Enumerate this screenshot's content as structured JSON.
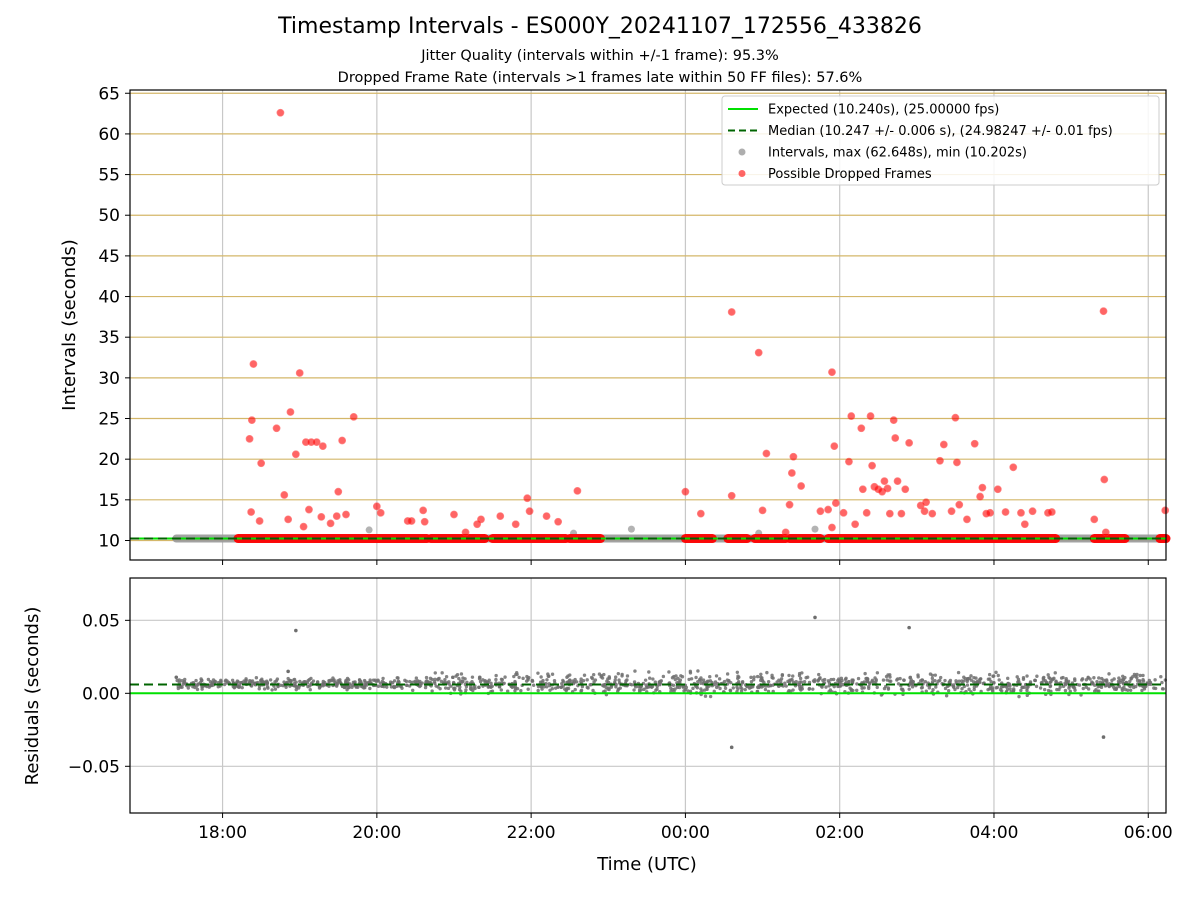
{
  "title": "Timestamp Intervals - ES000Y_20241107_172556_433826",
  "subtitle_lines": [
    "Jitter Quality (intervals within +/-1 frame): 95.3%",
    "Dropped Frame Rate (intervals >1 frames late within 50 FF files): 57.6%"
  ],
  "colors": {
    "expected": "#00e000",
    "median": "#006400",
    "intervals": "#9a9a9a",
    "dropped": "#ff0000",
    "residuals": "#6e6e6e",
    "hgrid_top": "#d4b76a",
    "vgrid": "#c8c8c8"
  },
  "chart_data": [
    {
      "type": "scatter",
      "panel": "top",
      "xlabel": "",
      "ylabel": "Intervals (seconds)",
      "x_unit": "hours since 00:00 UTC (negative = previous day)",
      "xlim": [
        -7.2,
        6.23
      ],
      "ylim": [
        7.6,
        65.4
      ],
      "yticks": [
        10,
        15,
        20,
        25,
        30,
        35,
        40,
        45,
        50,
        55,
        60,
        65
      ],
      "xticks": [
        -6,
        -4,
        -2,
        0,
        2,
        4,
        6
      ],
      "xtick_labels": [
        "18:00",
        "20:00",
        "22:00",
        "00:00",
        "02:00",
        "04:00",
        "06:00"
      ],
      "grid": {
        "horizontal": true,
        "vertical": true
      },
      "legend_position": "upper-right",
      "legend": [
        {
          "label": "Expected (10.240s), (25.00000 fps)",
          "kind": "line-solid"
        },
        {
          "label": "Median (10.247 +/- 0.006 s), (24.98247 +/- 0.01 fps)",
          "kind": "line-dashed"
        },
        {
          "label": "Intervals, max (62.648s), min (10.202s)",
          "kind": "dot-gray"
        },
        {
          "label": "Possible Dropped Frames",
          "kind": "dot-red"
        }
      ],
      "expected_value": 10.24,
      "median_value": 10.247,
      "intervals_band": {
        "start": -6.6,
        "end": 6.23,
        "value": 10.24
      },
      "dropped_band_segments": [
        [
          -5.8,
          -3.35
        ],
        [
          -3.3,
          -2.6
        ],
        [
          -2.5,
          -1.55
        ],
        [
          -1.5,
          -1.1
        ],
        [
          0.0,
          0.35
        ],
        [
          0.55,
          0.8
        ],
        [
          0.9,
          1.3
        ],
        [
          1.35,
          1.75
        ],
        [
          1.85,
          4.8
        ],
        [
          5.3,
          5.7
        ],
        [
          6.15,
          6.23
        ]
      ],
      "isolated_intervals": [
        {
          "x": -1.45,
          "y": 10.9
        },
        {
          "x": -0.7,
          "y": 11.4
        },
        {
          "x": 0.95,
          "y": 10.9
        },
        {
          "x": 1.68,
          "y": 11.4
        },
        {
          "x": -4.1,
          "y": 11.3
        }
      ],
      "dropped_points": [
        {
          "x": -5.6,
          "y": 31.7
        },
        {
          "x": -5.65,
          "y": 22.5
        },
        {
          "x": -5.62,
          "y": 24.8
        },
        {
          "x": -5.5,
          "y": 19.5
        },
        {
          "x": -5.3,
          "y": 23.8
        },
        {
          "x": -5.2,
          "y": 15.6
        },
        {
          "x": -5.25,
          "y": 62.6
        },
        {
          "x": -5.05,
          "y": 20.6
        },
        {
          "x": -5.0,
          "y": 30.6
        },
        {
          "x": -4.92,
          "y": 22.1
        },
        {
          "x": -4.85,
          "y": 22.1
        },
        {
          "x": -4.78,
          "y": 22.1
        },
        {
          "x": -4.7,
          "y": 21.6
        },
        {
          "x": -5.12,
          "y": 25.8
        },
        {
          "x": -4.5,
          "y": 16.0
        },
        {
          "x": -4.45,
          "y": 22.3
        },
        {
          "x": -4.3,
          "y": 25.2
        },
        {
          "x": -5.63,
          "y": 13.5
        },
        {
          "x": -5.52,
          "y": 12.4
        },
        {
          "x": -5.15,
          "y": 12.6
        },
        {
          "x": -4.95,
          "y": 11.7
        },
        {
          "x": -4.88,
          "y": 13.8
        },
        {
          "x": -4.72,
          "y": 12.9
        },
        {
          "x": -4.6,
          "y": 12.1
        },
        {
          "x": -4.52,
          "y": 13.0
        },
        {
          "x": -4.4,
          "y": 13.2
        },
        {
          "x": -4.0,
          "y": 14.2
        },
        {
          "x": -3.95,
          "y": 13.4
        },
        {
          "x": -3.6,
          "y": 12.4
        },
        {
          "x": -3.55,
          "y": 12.4
        },
        {
          "x": -3.4,
          "y": 13.7
        },
        {
          "x": -3.38,
          "y": 12.3
        },
        {
          "x": -3.0,
          "y": 13.2
        },
        {
          "x": -2.85,
          "y": 11.0
        },
        {
          "x": -2.7,
          "y": 12.0
        },
        {
          "x": -2.65,
          "y": 12.6
        },
        {
          "x": -2.4,
          "y": 13.0
        },
        {
          "x": -2.2,
          "y": 12.0
        },
        {
          "x": -2.05,
          "y": 15.2
        },
        {
          "x": -2.02,
          "y": 13.6
        },
        {
          "x": -1.8,
          "y": 13.0
        },
        {
          "x": -1.65,
          "y": 12.3
        },
        {
          "x": -1.4,
          "y": 16.1
        },
        {
          "x": 0.0,
          "y": 16.0
        },
        {
          "x": 0.2,
          "y": 13.3
        },
        {
          "x": 0.6,
          "y": 38.1
        },
        {
          "x": 0.6,
          "y": 15.5
        },
        {
          "x": 0.95,
          "y": 33.1
        },
        {
          "x": 1.05,
          "y": 20.7
        },
        {
          "x": 1.0,
          "y": 13.7
        },
        {
          "x": 1.3,
          "y": 11.0
        },
        {
          "x": 1.35,
          "y": 14.4
        },
        {
          "x": 1.38,
          "y": 18.3
        },
        {
          "x": 1.4,
          "y": 20.3
        },
        {
          "x": 1.5,
          "y": 16.7
        },
        {
          "x": 1.75,
          "y": 13.6
        },
        {
          "x": 1.85,
          "y": 13.8
        },
        {
          "x": 1.9,
          "y": 30.7
        },
        {
          "x": 1.93,
          "y": 21.6
        },
        {
          "x": 1.95,
          "y": 14.6
        },
        {
          "x": 1.9,
          "y": 11.6
        },
        {
          "x": 2.05,
          "y": 13.4
        },
        {
          "x": 2.15,
          "y": 25.3
        },
        {
          "x": 2.12,
          "y": 19.7
        },
        {
          "x": 2.2,
          "y": 12.0
        },
        {
          "x": 2.28,
          "y": 23.8
        },
        {
          "x": 2.3,
          "y": 16.3
        },
        {
          "x": 2.35,
          "y": 13.4
        },
        {
          "x": 2.4,
          "y": 25.3
        },
        {
          "x": 2.42,
          "y": 19.2
        },
        {
          "x": 2.45,
          "y": 16.6
        },
        {
          "x": 2.5,
          "y": 16.3
        },
        {
          "x": 2.55,
          "y": 16.0
        },
        {
          "x": 2.58,
          "y": 17.3
        },
        {
          "x": 2.62,
          "y": 16.4
        },
        {
          "x": 2.65,
          "y": 13.3
        },
        {
          "x": 2.7,
          "y": 24.8
        },
        {
          "x": 2.72,
          "y": 22.6
        },
        {
          "x": 2.75,
          "y": 17.3
        },
        {
          "x": 2.8,
          "y": 13.3
        },
        {
          "x": 2.85,
          "y": 16.3
        },
        {
          "x": 2.9,
          "y": 22.0
        },
        {
          "x": 3.05,
          "y": 14.3
        },
        {
          "x": 3.1,
          "y": 13.6
        },
        {
          "x": 3.12,
          "y": 14.7
        },
        {
          "x": 3.2,
          "y": 13.3
        },
        {
          "x": 3.3,
          "y": 19.8
        },
        {
          "x": 3.35,
          "y": 21.8
        },
        {
          "x": 3.45,
          "y": 13.6
        },
        {
          "x": 3.5,
          "y": 25.1
        },
        {
          "x": 3.52,
          "y": 19.6
        },
        {
          "x": 3.55,
          "y": 14.4
        },
        {
          "x": 3.65,
          "y": 12.6
        },
        {
          "x": 3.75,
          "y": 21.9
        },
        {
          "x": 3.82,
          "y": 15.4
        },
        {
          "x": 3.85,
          "y": 16.5
        },
        {
          "x": 3.9,
          "y": 13.3
        },
        {
          "x": 3.95,
          "y": 13.4
        },
        {
          "x": 4.05,
          "y": 16.3
        },
        {
          "x": 4.15,
          "y": 13.5
        },
        {
          "x": 4.25,
          "y": 19.0
        },
        {
          "x": 4.35,
          "y": 13.4
        },
        {
          "x": 4.4,
          "y": 12.0
        },
        {
          "x": 4.5,
          "y": 13.6
        },
        {
          "x": 4.7,
          "y": 13.4
        },
        {
          "x": 4.75,
          "y": 13.5
        },
        {
          "x": 5.3,
          "y": 12.6
        },
        {
          "x": 5.42,
          "y": 38.2
        },
        {
          "x": 5.43,
          "y": 17.5
        },
        {
          "x": 5.45,
          "y": 11.0
        },
        {
          "x": 6.22,
          "y": 13.7
        }
      ]
    },
    {
      "type": "scatter",
      "panel": "bottom",
      "xlabel": "Time (UTC)",
      "ylabel": "Residuals (seconds)",
      "xlim": [
        -7.2,
        6.23
      ],
      "ylim": [
        -0.082,
        0.079
      ],
      "yticks": [
        0.05,
        0.0,
        -0.05
      ],
      "ytick_labels": [
        "0.05",
        "0.00",
        "−0.05"
      ],
      "xticks": [
        -6,
        -4,
        -2,
        0,
        2,
        4,
        6
      ],
      "xtick_labels": [
        "18:00",
        "20:00",
        "22:00",
        "00:00",
        "02:00",
        "04:00",
        "06:00"
      ],
      "grid": {
        "horizontal": true,
        "vertical": true
      },
      "expected_value": 0.0,
      "median_value": 0.006,
      "residual_band": {
        "start": -6.6,
        "end": 6.23,
        "center": 0.0065,
        "spread": 0.0075
      },
      "outliers": [
        {
          "x": -5.05,
          "y": 0.043
        },
        {
          "x": 1.68,
          "y": 0.052
        },
        {
          "x": 2.9,
          "y": 0.045
        },
        {
          "x": 0.6,
          "y": -0.037
        },
        {
          "x": 5.42,
          "y": -0.03
        },
        {
          "x": -5.15,
          "y": 0.015
        },
        {
          "x": -6.6,
          "y": 0.011
        }
      ]
    }
  ]
}
